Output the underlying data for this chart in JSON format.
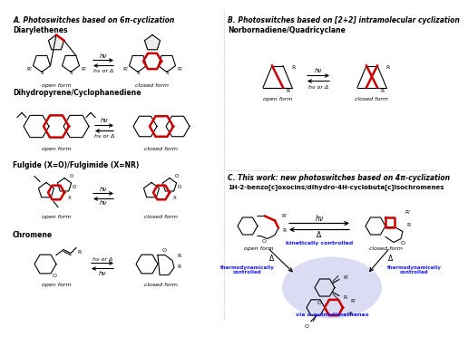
{
  "bg_color": "#ffffff",
  "section_A_title": "A. Photoswitches based on 6π-cyclization",
  "section_B_title": "B. Photoswitches based on [2+2] intramolecular cyclization",
  "section_C_title": "C. This work: new photoswitches based on 4π-cyclization",
  "sub_C_title": "1H-2-benzo[c]oxocins/dihydro-4H-cyclobuta[c]isochromenes",
  "diarylethenes": "Diarylethenes",
  "dihydropyrene": "Dihydropyrene/Cyclophanediene",
  "fulgide": "Fulgide (X=O)/Fulgimide (X=NR)",
  "chromene": "Chromene",
  "norbornadiene": "Norbornadiene/Quadricyclane",
  "red_color": "#cc0000",
  "blue_color": "#1a1aff",
  "black": "#000000",
  "gray": "#888888",
  "open_form": "open form",
  "closed_form": "closed form",
  "hv": "hν",
  "hv_or_delta": "hν or Δ",
  "kinetically": "kinetically controlled",
  "thermo": "thermodynamically\ncontrolled",
  "via": "via o-quinodimethanes",
  "delta": "Δ",
  "circle_color": "#d0d0f0"
}
